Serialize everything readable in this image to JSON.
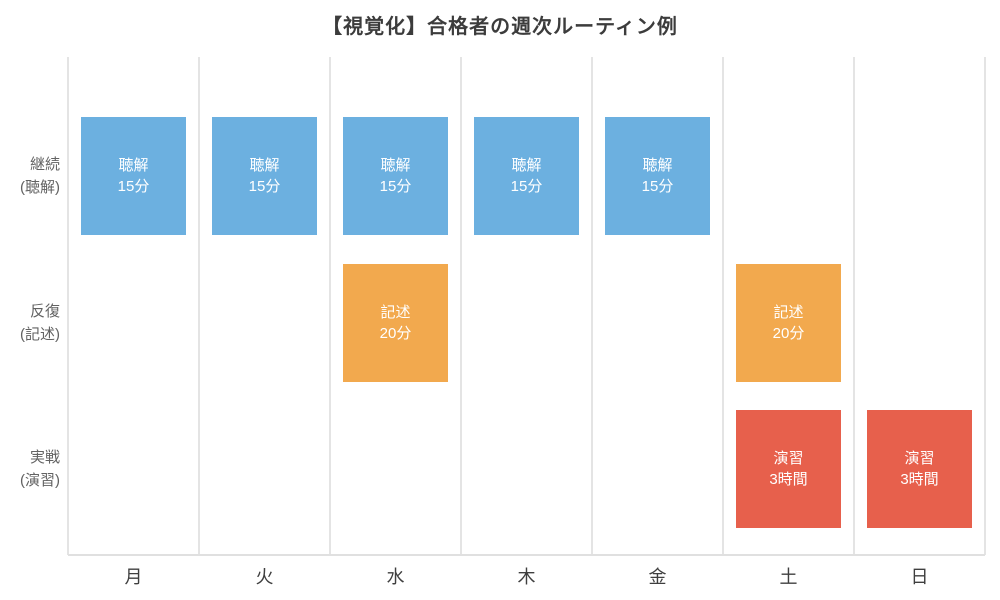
{
  "chart_data": {
    "type": "heatmap",
    "title": "【視覚化】合格者の週次ルーティン例",
    "x_categories": [
      "月",
      "火",
      "水",
      "木",
      "金",
      "土",
      "日"
    ],
    "y_categories": [
      {
        "line1": "継続",
        "line2": "(聴解)"
      },
      {
        "line1": "反復",
        "line2": "(記述)"
      },
      {
        "line1": "実戦",
        "line2": "(演習)"
      }
    ],
    "colors": {
      "listening": "#6CB0E0",
      "writing": "#F2A94E",
      "practice": "#E7604C"
    },
    "series": [
      {
        "name": "継続(聴解)",
        "activity": "聴解",
        "duration": "15分",
        "days": [
          "月",
          "火",
          "水",
          "木",
          "金"
        ],
        "color": "#6CB0E0"
      },
      {
        "name": "反復(記述)",
        "activity": "記述",
        "duration": "20分",
        "days": [
          "水",
          "土"
        ],
        "color": "#F2A94E"
      },
      {
        "name": "実戦(演習)",
        "activity": "演習",
        "duration": "3時間",
        "days": [
          "土",
          "日"
        ],
        "color": "#E7604C"
      }
    ],
    "cells": [
      {
        "row": 0,
        "col": 0,
        "line1": "聴解",
        "line2": "15分",
        "color_key": "listening"
      },
      {
        "row": 0,
        "col": 1,
        "line1": "聴解",
        "line2": "15分",
        "color_key": "listening"
      },
      {
        "row": 0,
        "col": 2,
        "line1": "聴解",
        "line2": "15分",
        "color_key": "listening"
      },
      {
        "row": 0,
        "col": 3,
        "line1": "聴解",
        "line2": "15分",
        "color_key": "listening"
      },
      {
        "row": 0,
        "col": 4,
        "line1": "聴解",
        "line2": "15分",
        "color_key": "listening"
      },
      {
        "row": 1,
        "col": 2,
        "line1": "記述",
        "line2": "20分",
        "color_key": "writing"
      },
      {
        "row": 1,
        "col": 5,
        "line1": "記述",
        "line2": "20分",
        "color_key": "writing"
      },
      {
        "row": 2,
        "col": 5,
        "line1": "演習",
        "line2": "3時間",
        "color_key": "practice"
      },
      {
        "row": 2,
        "col": 6,
        "line1": "演習",
        "line2": "3時間",
        "color_key": "practice"
      }
    ],
    "grid": true,
    "legend": "none",
    "layout_hint": "weekly routine matrix: columns = days of week, rows = activity categories"
  }
}
